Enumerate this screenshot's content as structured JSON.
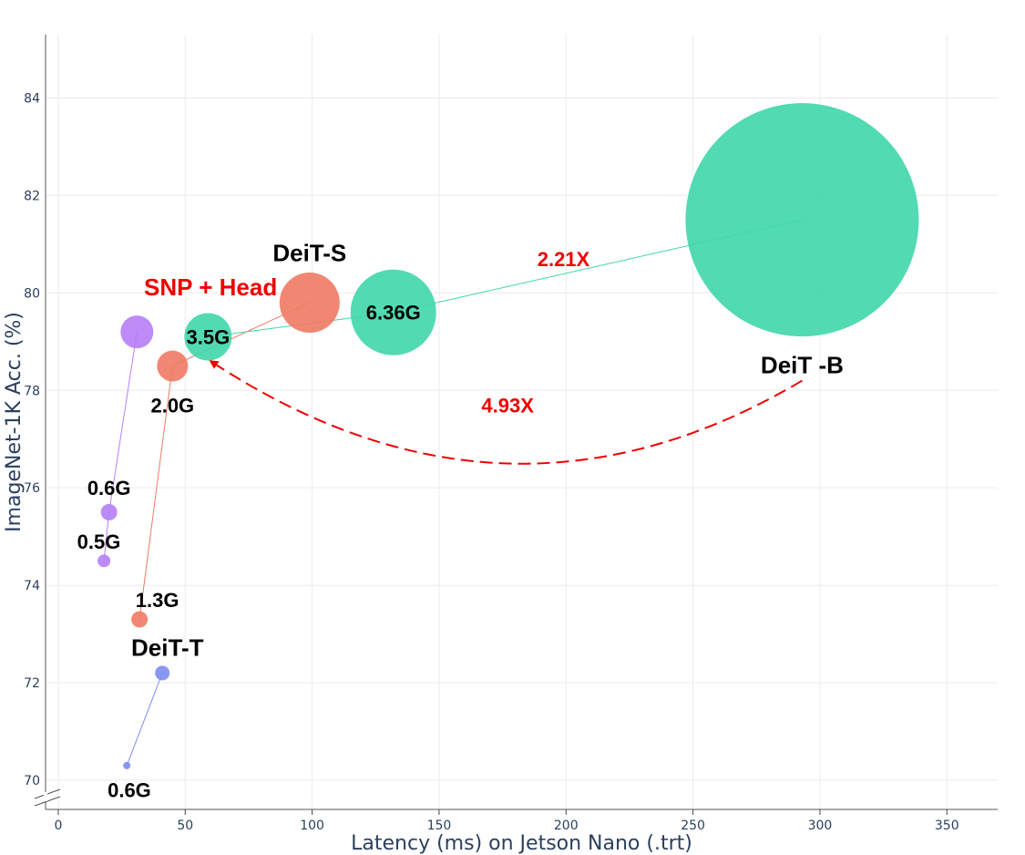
{
  "chart_data": {
    "type": "scatter",
    "xlabel": "Latency (ms) on Jetson Nano (.trt)",
    "ylabel": "ImageNet-1K Acc. (%)",
    "xlim": [
      -5,
      370
    ],
    "ylim": [
      69.4,
      85.3
    ],
    "x_ticks": [
      0,
      50,
      100,
      150,
      200,
      250,
      300,
      350
    ],
    "y_ticks": [
      70,
      72,
      74,
      76,
      78,
      80,
      82,
      84
    ],
    "grid": true,
    "legend": "none",
    "colors": {
      "purple": "#b57ef7",
      "salmon": "#f07a64",
      "green": "#3fd6ab",
      "blue": "#7d8cf0",
      "red": "#ee0000"
    },
    "series": [
      {
        "color": "purple",
        "points": [
          {
            "x": 18,
            "y": 74.5,
            "r": 7
          },
          {
            "x": 20,
            "y": 75.5,
            "r": 9
          },
          {
            "x": 31,
            "y": 79.2,
            "r": 18
          }
        ]
      },
      {
        "color": "salmon",
        "points": [
          {
            "x": 32,
            "y": 73.3,
            "r": 9
          },
          {
            "x": 45,
            "y": 78.5,
            "r": 17
          },
          {
            "x": 99,
            "y": 79.8,
            "r": 33
          }
        ]
      },
      {
        "color": "green",
        "points": [
          {
            "x": 59,
            "y": 79.1,
            "r": 26
          },
          {
            "x": 132,
            "y": 79.6,
            "r": 47
          },
          {
            "x": 293,
            "y": 81.5,
            "r": 128
          }
        ]
      },
      {
        "color": "blue",
        "points": [
          {
            "x": 27,
            "y": 70.3,
            "r": 4
          },
          {
            "x": 41,
            "y": 72.2,
            "r": 8
          }
        ]
      }
    ],
    "annotations": [
      {
        "text": "0.6G",
        "x": 20,
        "y": 76.0,
        "style": "label"
      },
      {
        "text": "0.5G",
        "x": 16,
        "y": 74.9,
        "style": "label"
      },
      {
        "text": "1.3G",
        "x": 39,
        "y": 73.7,
        "style": "label"
      },
      {
        "text": "DeiT-T",
        "x": 43,
        "y": 72.7,
        "style": "large"
      },
      {
        "text": "0.6G",
        "x": 28,
        "y": 69.8,
        "style": "label"
      },
      {
        "text": "2.0G",
        "x": 45,
        "y": 77.7,
        "style": "label"
      },
      {
        "text": "3.5G",
        "x": 59,
        "y": 79.1,
        "style": "label"
      },
      {
        "text": "6.36G",
        "x": 132,
        "y": 79.6,
        "style": "label"
      },
      {
        "text": "DeiT-S",
        "x": 99,
        "y": 80.8,
        "style": "large"
      },
      {
        "text": "SNP + Head",
        "x": 60,
        "y": 80.1,
        "style": "red-large"
      },
      {
        "text": "DeiT -B",
        "x": 293,
        "y": 78.5,
        "style": "large"
      },
      {
        "text": "2.21X",
        "x": 199,
        "y": 80.7,
        "style": "red"
      },
      {
        "text": "4.93X",
        "x": 177,
        "y": 77.7,
        "style": "red"
      }
    ],
    "arrow": {
      "from": {
        "x": 293,
        "y": 78.2
      },
      "to": {
        "x": 60,
        "y": 78.6
      },
      "bottom_y": 76.5,
      "style": "dashed"
    }
  }
}
